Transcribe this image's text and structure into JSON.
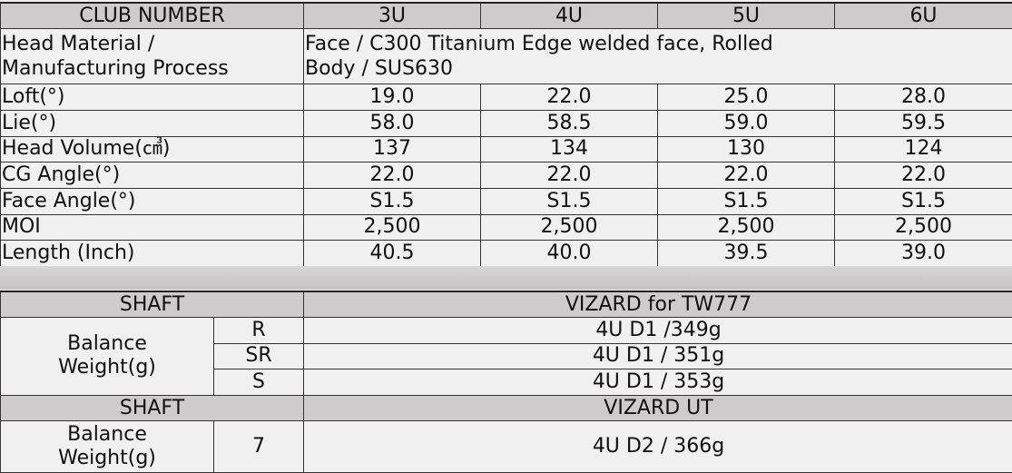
{
  "spec": {
    "header_label": "CLUB NUMBER",
    "clubs": [
      "3U",
      "4U",
      "5U",
      "6U"
    ],
    "head_material_label_1": "Head Material /",
    "head_material_label_2": "Manufacturing Process",
    "head_material_value_1": "Face / C300 Titanium Edge welded face, Rolled",
    "head_material_value_2": "Body / SUS630",
    "rows": [
      {
        "label": "Loft(°)",
        "values": [
          "19.0",
          "22.0",
          "25.0",
          "28.0"
        ]
      },
      {
        "label": "Lie(°)",
        "values": [
          "58.0",
          "58.5",
          "59.0",
          "59.5"
        ]
      },
      {
        "label": "Head Volume(㎤)",
        "values": [
          "137",
          "134",
          "130",
          "124"
        ]
      },
      {
        "label": "CG Angle(°)",
        "values": [
          "22.0",
          "22.0",
          "22.0",
          "22.0"
        ]
      },
      {
        "label": "Face Angle(°)",
        "values": [
          "S1.5",
          "S1.5",
          "S1.5",
          "S1.5"
        ]
      },
      {
        "label": "MOI",
        "values": [
          "2,500",
          "2,500",
          "2,500",
          "2,500"
        ]
      },
      {
        "label": "Length (Inch)",
        "values": [
          "40.5",
          "40.0",
          "39.5",
          "39.0"
        ]
      }
    ]
  },
  "shafts": [
    {
      "header_label": "SHAFT",
      "name": "VIZARD for TW777",
      "balance_label": "Balance Weight(g)",
      "flexes": [
        {
          "flex": "R",
          "value": "4U  D1 /349g"
        },
        {
          "flex": "SR",
          "value": "4U  D1 / 351g"
        },
        {
          "flex": "S",
          "value": "4U  D1 / 353g"
        }
      ]
    },
    {
      "header_label": "SHAFT",
      "name": "VIZARD UT",
      "balance_label": "Balance Weight(g)",
      "flexes": [
        {
          "flex": "7",
          "value": "4U  D2 / 366g"
        }
      ]
    }
  ]
}
